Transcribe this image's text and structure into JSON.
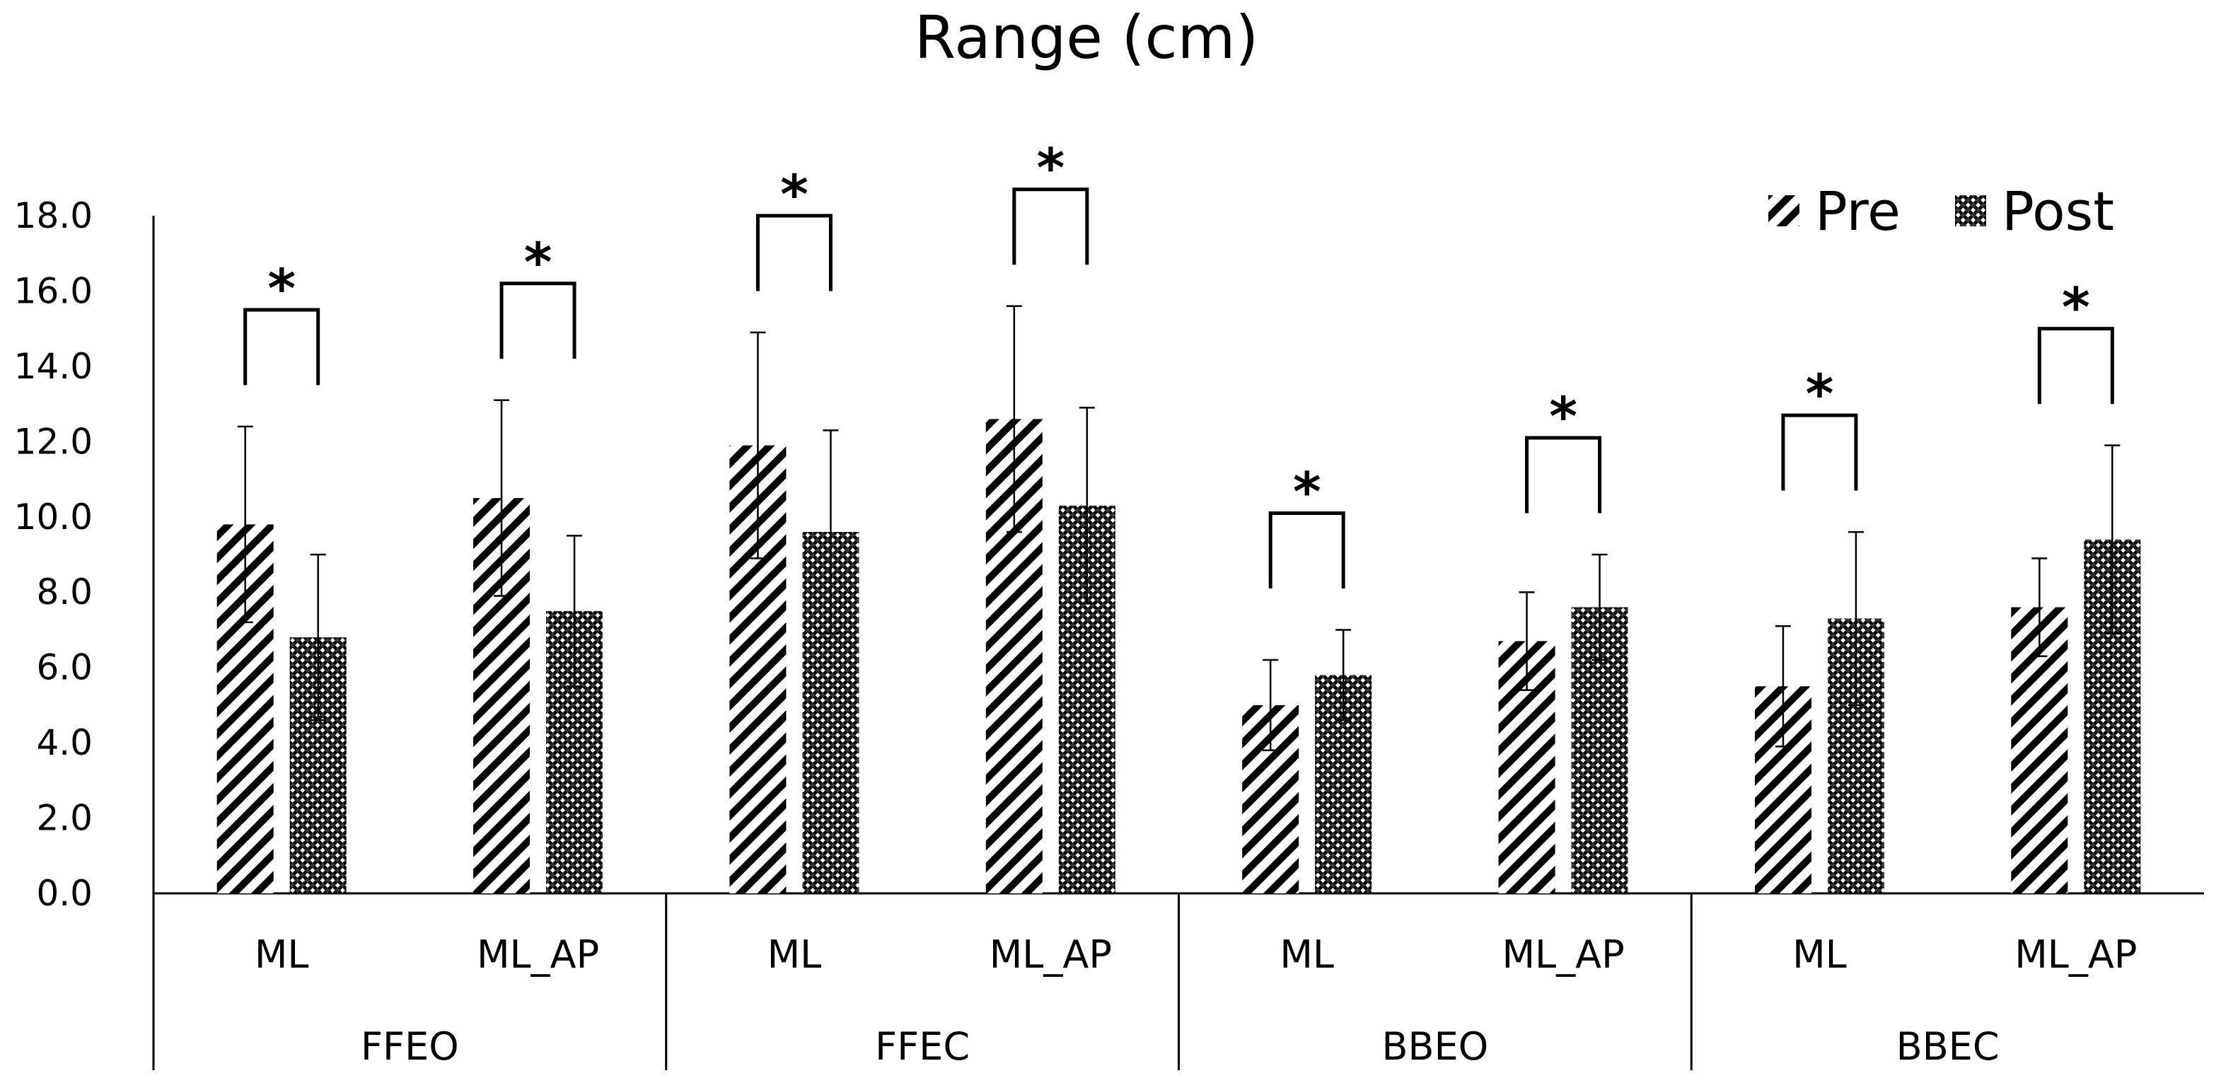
{
  "chart_data": {
    "type": "bar",
    "title": "Range (cm)",
    "xlabel": "",
    "ylabel": "",
    "ylim": [
      0,
      18
    ],
    "ytick_step": 2,
    "ytick_labels": [
      "0.0",
      "2.0",
      "4.0",
      "6.0",
      "8.0",
      "10.0",
      "12.0",
      "14.0",
      "16.0",
      "18.0"
    ],
    "groups": [
      {
        "label": "FFEO",
        "categories": [
          "ML",
          "ML_AP"
        ]
      },
      {
        "label": "FFEC",
        "categories": [
          "ML",
          "ML_AP"
        ]
      },
      {
        "label": "BBEO",
        "categories": [
          "ML",
          "ML_AP"
        ]
      },
      {
        "label": "BBEC",
        "categories": [
          "ML",
          "ML_AP"
        ]
      }
    ],
    "categories": [
      "ML",
      "ML_AP",
      "ML",
      "ML_AP",
      "ML",
      "ML_AP",
      "ML",
      "ML_AP"
    ],
    "series": [
      {
        "name": "Pre",
        "pattern": "hatch",
        "values": [
          9.8,
          10.5,
          11.9,
          12.6,
          5.0,
          6.7,
          5.5,
          7.6
        ],
        "errors": [
          2.6,
          2.6,
          3.0,
          3.0,
          1.2,
          1.3,
          1.6,
          1.3
        ]
      },
      {
        "name": "Post",
        "pattern": "checker",
        "values": [
          6.8,
          7.5,
          9.6,
          10.3,
          5.8,
          7.6,
          7.3,
          9.4
        ],
        "errors": [
          2.2,
          2.0,
          2.7,
          2.6,
          1.2,
          1.4,
          2.3,
          2.5
        ]
      }
    ],
    "significance": [
      {
        "category_index": 0,
        "label": "*"
      },
      {
        "category_index": 1,
        "label": "*"
      },
      {
        "category_index": 2,
        "label": "*"
      },
      {
        "category_index": 3,
        "label": "*"
      },
      {
        "category_index": 4,
        "label": "*"
      },
      {
        "category_index": 5,
        "label": "*"
      },
      {
        "category_index": 6,
        "label": "*"
      },
      {
        "category_index": 7,
        "label": "*"
      }
    ],
    "legend": {
      "position": "top-right",
      "entries": [
        "Pre",
        "Post"
      ]
    },
    "grid": false
  }
}
